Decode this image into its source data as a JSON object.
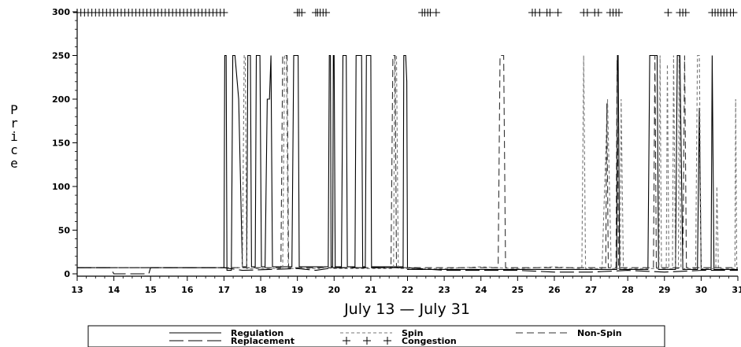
{
  "chart_data": {
    "type": "line",
    "title": "",
    "xlabel": "July 13 — July 31",
    "ylabel": "Price",
    "xlim": [
      13,
      31
    ],
    "ylim": [
      0,
      300
    ],
    "x_ticks": [
      "13",
      "14",
      "15",
      "16",
      "17",
      "18",
      "19",
      "20",
      "21",
      "22",
      "23",
      "24",
      "25",
      "26",
      "27",
      "28",
      "29",
      "30",
      "31"
    ],
    "y_ticks": [
      "0",
      "50",
      "100",
      "150",
      "200",
      "250",
      "300"
    ],
    "legend_position": "bottom",
    "grid": false,
    "series": [
      {
        "name": "Regulation",
        "style": "solid",
        "color": "#000000",
        "points": [
          [
            13,
            7
          ],
          [
            17.0,
            7
          ],
          [
            17.02,
            250
          ],
          [
            17.06,
            250
          ],
          [
            17.08,
            4
          ],
          [
            17.2,
            4
          ],
          [
            17.24,
            250
          ],
          [
            17.3,
            250
          ],
          [
            17.4,
            200
          ],
          [
            17.5,
            8
          ],
          [
            17.62,
            8
          ],
          [
            17.65,
            250
          ],
          [
            17.72,
            250
          ],
          [
            17.75,
            8
          ],
          [
            17.85,
            8
          ],
          [
            17.88,
            250
          ],
          [
            17.98,
            250
          ],
          [
            18.02,
            8
          ],
          [
            18.12,
            8
          ],
          [
            18.18,
            200
          ],
          [
            18.24,
            200
          ],
          [
            18.28,
            250
          ],
          [
            18.32,
            8
          ],
          [
            18.85,
            8
          ],
          [
            18.9,
            250
          ],
          [
            19.02,
            250
          ],
          [
            19.05,
            8
          ],
          [
            19.84,
            8
          ],
          [
            19.87,
            250
          ],
          [
            19.9,
            250
          ],
          [
            19.92,
            8
          ],
          [
            19.96,
            8
          ],
          [
            19.98,
            250
          ],
          [
            20.0,
            250
          ],
          [
            20.03,
            8
          ],
          [
            20.2,
            8
          ],
          [
            20.24,
            250
          ],
          [
            20.33,
            250
          ],
          [
            20.36,
            8
          ],
          [
            20.57,
            8
          ],
          [
            20.6,
            250
          ],
          [
            20.75,
            250
          ],
          [
            20.78,
            8
          ],
          [
            20.85,
            8
          ],
          [
            20.88,
            250
          ],
          [
            21.0,
            250
          ],
          [
            21.02,
            8
          ],
          [
            21.88,
            8
          ],
          [
            21.9,
            250
          ],
          [
            21.95,
            250
          ],
          [
            21.98,
            220
          ],
          [
            22.0,
            5
          ],
          [
            26.0,
            5
          ],
          [
            27.0,
            5
          ],
          [
            27.7,
            5
          ],
          [
            27.72,
            250
          ],
          [
            27.74,
            250
          ],
          [
            27.78,
            5
          ],
          [
            28.55,
            5
          ],
          [
            28.6,
            250
          ],
          [
            28.8,
            250
          ],
          [
            28.84,
            5
          ],
          [
            29.3,
            5
          ],
          [
            29.35,
            250
          ],
          [
            29.42,
            250
          ],
          [
            29.5,
            5
          ],
          [
            29.9,
            5
          ],
          [
            29.95,
            190
          ],
          [
            30.0,
            5
          ],
          [
            30.27,
            5
          ],
          [
            30.3,
            250
          ],
          [
            30.35,
            5
          ],
          [
            31,
            5
          ]
        ]
      },
      {
        "name": "Spin",
        "style": "dotted",
        "color": "#777777",
        "points": [
          [
            13,
            7
          ],
          [
            17.5,
            7
          ],
          [
            17.55,
            250
          ],
          [
            17.58,
            250
          ],
          [
            17.62,
            6
          ],
          [
            18.6,
            6
          ],
          [
            18.65,
            250
          ],
          [
            18.7,
            250
          ],
          [
            18.75,
            6
          ],
          [
            19.6,
            6
          ],
          [
            19.65,
            8
          ],
          [
            20.0,
            6
          ],
          [
            21.62,
            6
          ],
          [
            21.65,
            250
          ],
          [
            21.7,
            250
          ],
          [
            21.75,
            6
          ],
          [
            23.0,
            6
          ],
          [
            24.0,
            8
          ],
          [
            25.0,
            6
          ],
          [
            26.0,
            8
          ],
          [
            26.75,
            6
          ],
          [
            26.8,
            250
          ],
          [
            26.85,
            6
          ],
          [
            27.3,
            6
          ],
          [
            27.45,
            200
          ],
          [
            27.55,
            6
          ],
          [
            27.8,
            6
          ],
          [
            27.82,
            200
          ],
          [
            27.88,
            6
          ],
          [
            28.85,
            6
          ],
          [
            28.88,
            250
          ],
          [
            28.92,
            6
          ],
          [
            29.05,
            6
          ],
          [
            29.08,
            240
          ],
          [
            29.12,
            6
          ],
          [
            29.22,
            6
          ],
          [
            29.25,
            250
          ],
          [
            29.3,
            6
          ],
          [
            29.38,
            6
          ],
          [
            29.4,
            250
          ],
          [
            29.45,
            6
          ],
          [
            29.85,
            6
          ],
          [
            29.9,
            250
          ],
          [
            29.95,
            250
          ],
          [
            30.0,
            6
          ],
          [
            30.4,
            6
          ],
          [
            30.43,
            100
          ],
          [
            30.47,
            6
          ],
          [
            30.92,
            6
          ],
          [
            30.94,
            200
          ],
          [
            30.97,
            6
          ],
          [
            31,
            6
          ]
        ]
      },
      {
        "name": "Non-Spin",
        "style": "dashed",
        "color": "#333333",
        "points": [
          [
            13,
            7
          ],
          [
            18.55,
            7
          ],
          [
            18.6,
            250
          ],
          [
            18.72,
            250
          ],
          [
            18.76,
            7
          ],
          [
            21.55,
            7
          ],
          [
            21.6,
            250
          ],
          [
            21.66,
            250
          ],
          [
            21.7,
            7
          ],
          [
            24.47,
            7
          ],
          [
            24.52,
            250
          ],
          [
            24.62,
            250
          ],
          [
            24.67,
            7
          ],
          [
            27.4,
            7
          ],
          [
            27.43,
            195
          ],
          [
            27.47,
            7
          ],
          [
            27.68,
            7
          ],
          [
            27.71,
            245
          ],
          [
            27.75,
            7
          ],
          [
            28.7,
            7
          ],
          [
            28.74,
            250
          ],
          [
            28.78,
            7
          ],
          [
            29.5,
            7
          ],
          [
            29.55,
            250
          ],
          [
            29.6,
            7
          ],
          [
            31,
            7
          ]
        ]
      },
      {
        "name": "Replacement",
        "style": "longdash",
        "color": "#000000",
        "points": [
          [
            13,
            7
          ],
          [
            13.9,
            7
          ],
          [
            14.0,
            0
          ],
          [
            14.95,
            0
          ],
          [
            15.0,
            7
          ],
          [
            17.0,
            7
          ],
          [
            17.5,
            4
          ],
          [
            19.0,
            6
          ],
          [
            19.5,
            4
          ],
          [
            20.0,
            7
          ],
          [
            22.0,
            7
          ],
          [
            23.0,
            4
          ],
          [
            25.0,
            4
          ],
          [
            26.0,
            2
          ],
          [
            27.0,
            2
          ],
          [
            28.0,
            4
          ],
          [
            29.0,
            2
          ],
          [
            30.0,
            4
          ],
          [
            31,
            4
          ]
        ]
      },
      {
        "name": "Congestion",
        "style": "plus",
        "color": "#000000",
        "points": [
          [
            13.0,
            300
          ],
          [
            13.1,
            300
          ],
          [
            13.2,
            300
          ],
          [
            13.3,
            300
          ],
          [
            13.4,
            300
          ],
          [
            13.5,
            300
          ],
          [
            13.6,
            300
          ],
          [
            13.7,
            300
          ],
          [
            13.8,
            300
          ],
          [
            13.9,
            300
          ],
          [
            14.0,
            300
          ],
          [
            14.1,
            300
          ],
          [
            14.2,
            300
          ],
          [
            14.3,
            300
          ],
          [
            14.4,
            300
          ],
          [
            14.5,
            300
          ],
          [
            14.6,
            300
          ],
          [
            14.7,
            300
          ],
          [
            14.8,
            300
          ],
          [
            14.9,
            300
          ],
          [
            15.0,
            300
          ],
          [
            15.1,
            300
          ],
          [
            15.2,
            300
          ],
          [
            15.3,
            300
          ],
          [
            15.4,
            300
          ],
          [
            15.5,
            300
          ],
          [
            15.6,
            300
          ],
          [
            15.7,
            300
          ],
          [
            15.8,
            300
          ],
          [
            15.9,
            300
          ],
          [
            16.0,
            300
          ],
          [
            16.1,
            300
          ],
          [
            16.2,
            300
          ],
          [
            16.3,
            300
          ],
          [
            16.4,
            300
          ],
          [
            16.5,
            300
          ],
          [
            16.6,
            300
          ],
          [
            16.7,
            300
          ],
          [
            16.8,
            300
          ],
          [
            16.9,
            300
          ],
          [
            17.0,
            300
          ],
          [
            19.0,
            300
          ],
          [
            19.05,
            300
          ],
          [
            19.12,
            300
          ],
          [
            19.5,
            300
          ],
          [
            19.55,
            300
          ],
          [
            19.62,
            300
          ],
          [
            19.7,
            300
          ],
          [
            19.78,
            300
          ],
          [
            22.4,
            300
          ],
          [
            22.47,
            300
          ],
          [
            22.55,
            300
          ],
          [
            22.62,
            300
          ],
          [
            22.78,
            300
          ],
          [
            25.4,
            300
          ],
          [
            25.48,
            300
          ],
          [
            25.6,
            300
          ],
          [
            25.8,
            300
          ],
          [
            25.88,
            300
          ],
          [
            26.1,
            300
          ],
          [
            26.8,
            300
          ],
          [
            26.9,
            300
          ],
          [
            27.1,
            300
          ],
          [
            27.2,
            300
          ],
          [
            27.52,
            300
          ],
          [
            27.6,
            300
          ],
          [
            27.68,
            300
          ],
          [
            27.76,
            300
          ],
          [
            29.1,
            300
          ],
          [
            29.42,
            300
          ],
          [
            29.5,
            300
          ],
          [
            29.58,
            300
          ],
          [
            30.3,
            300
          ],
          [
            30.38,
            300
          ],
          [
            30.46,
            300
          ],
          [
            30.54,
            300
          ],
          [
            30.62,
            300
          ],
          [
            30.7,
            300
          ],
          [
            30.8,
            300
          ],
          [
            30.88,
            300
          ]
        ]
      }
    ]
  }
}
